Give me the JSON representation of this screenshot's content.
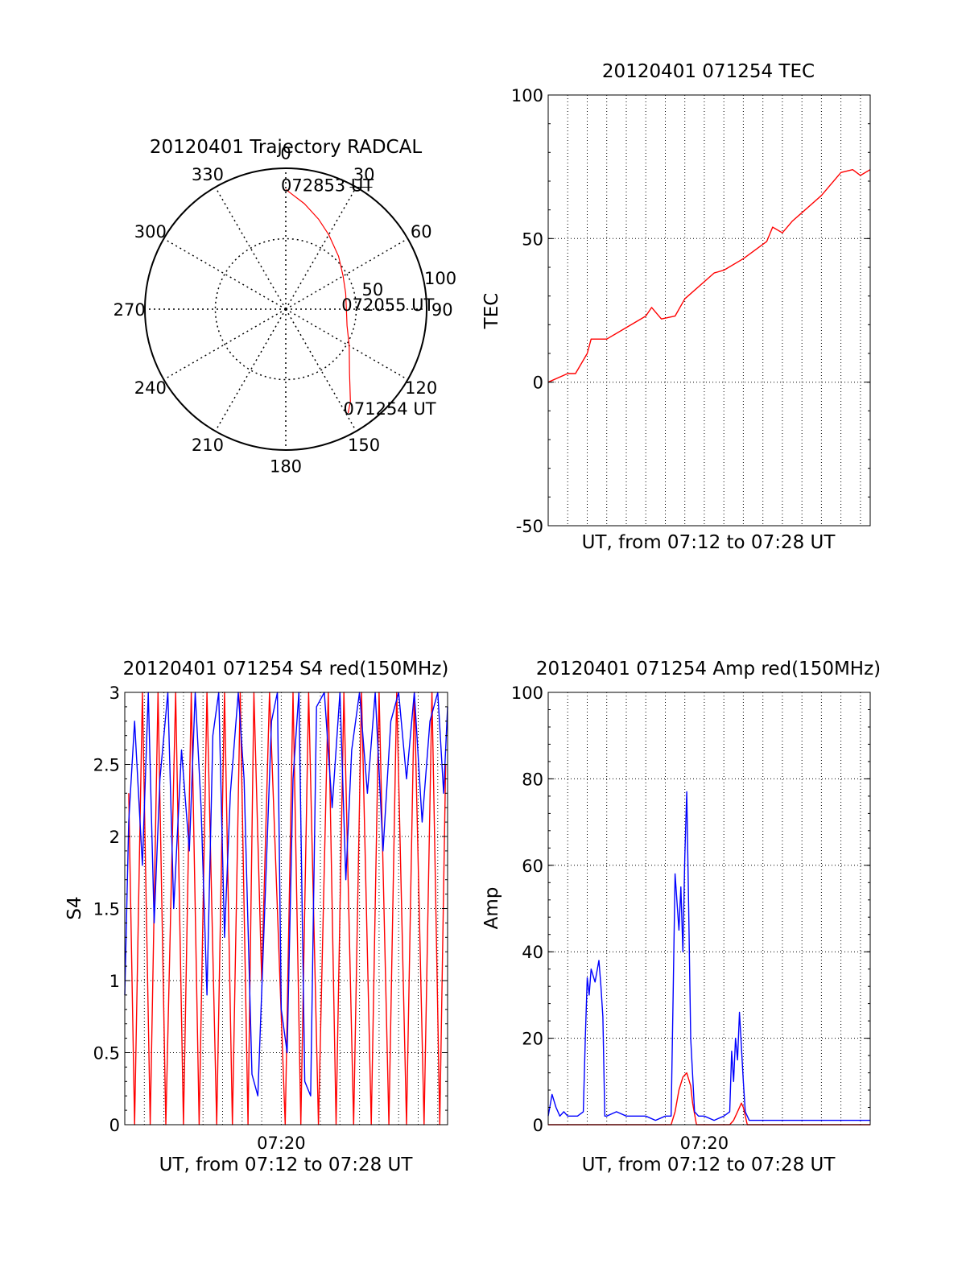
{
  "chart_data": [
    {
      "type": "polar",
      "title": "20120401 Trajectory RADCAL",
      "angle_ticks": [
        "0",
        "30",
        "60",
        "90",
        "120",
        "150",
        "180",
        "210",
        "240",
        "270",
        "300",
        "330"
      ],
      "angle_values": [
        0,
        30,
        60,
        90,
        120,
        150,
        180,
        210,
        240,
        270,
        300,
        330
      ],
      "radius_ticks": [
        "100",
        "50"
      ],
      "radius_values": [
        100,
        50
      ],
      "track_color": "#ff0000",
      "track": [
        {
          "az": 0,
          "r": 85
        },
        {
          "az": 10,
          "r": 76
        },
        {
          "az": 20,
          "r": 68
        },
        {
          "az": 30,
          "r": 61
        },
        {
          "az": 45,
          "r": 53
        },
        {
          "az": 60,
          "r": 47
        },
        {
          "az": 75,
          "r": 44
        },
        {
          "az": 90,
          "r": 43
        },
        {
          "az": 105,
          "r": 45
        },
        {
          "az": 120,
          "r": 52
        },
        {
          "az": 135,
          "r": 64
        },
        {
          "az": 145,
          "r": 80
        },
        {
          "az": 149,
          "r": 86
        }
      ],
      "labels": [
        {
          "text": "072853 UT",
          "az": 0,
          "r": 85
        },
        {
          "text": "072055 UT",
          "az": 90,
          "r": 43
        },
        {
          "text": "071254 UT",
          "az": 149,
          "r": 86
        }
      ]
    },
    {
      "type": "line",
      "title": "20120401 071254 TEC",
      "xlabel": "UT, from 07:12 to 07:28 UT",
      "ylabel": "TEC",
      "xlim": [
        0,
        16.5
      ],
      "ylim": [
        -50,
        100
      ],
      "yticks": [
        "100",
        "50",
        "0",
        "-50"
      ],
      "ytick_values": [
        100,
        50,
        0,
        -50
      ],
      "grid": true,
      "series": [
        {
          "color": "#ff0000",
          "x": [
            0.0,
            1.0,
            1.4,
            2.0,
            2.2,
            3.0,
            4.0,
            5.0,
            5.3,
            5.8,
            6.5,
            7.0,
            8.5,
            9.0,
            10.0,
            11.2,
            11.5,
            12.0,
            12.5,
            13.0,
            14.0,
            15.0,
            15.6,
            16.0,
            16.5
          ],
          "values": [
            0,
            3,
            3,
            10,
            15,
            15,
            19,
            23,
            26,
            22,
            23,
            29,
            38,
            39,
            43,
            49,
            54,
            52,
            56,
            59,
            65,
            73,
            74,
            72,
            74
          ]
        }
      ]
    },
    {
      "type": "line",
      "title": "20120401 071254 S4 red(150MHz)",
      "xlabel": "UT, from 07:12 to 07:28 UT",
      "ylabel": "S4",
      "xticks": [
        "07:20"
      ],
      "xtick_values": [
        8
      ],
      "xlim": [
        0,
        16.5
      ],
      "ylim": [
        0,
        3
      ],
      "yticks": [
        "3",
        "2.5",
        "2",
        "1.5",
        "1",
        "0.5",
        "0"
      ],
      "ytick_values": [
        3,
        2.5,
        2,
        1.5,
        1,
        0.5,
        0
      ],
      "grid": true,
      "series": [
        {
          "color": "#ff0000",
          "x": [
            0.2,
            0.5,
            0.9,
            1.3,
            1.7,
            2.1,
            2.6,
            3.0,
            3.4,
            3.8,
            4.2,
            4.7,
            5.1,
            5.5,
            5.9,
            6.3,
            6.6,
            7.0,
            7.4,
            8.2,
            8.6,
            9.0,
            9.4,
            9.9,
            10.4,
            10.8,
            11.2,
            11.7,
            12.1,
            12.6,
            13.0,
            13.5,
            13.9,
            14.4,
            14.8,
            15.3,
            15.7,
            16.1,
            16.4
          ],
          "values": [
            2.3,
            0,
            3,
            0,
            3,
            0,
            3,
            0,
            3,
            0,
            3,
            0,
            3,
            0,
            3,
            0,
            3,
            1.0,
            3,
            0,
            3,
            0,
            3,
            0,
            3,
            0,
            3,
            0,
            3,
            0,
            3,
            0,
            3,
            0,
            3,
            0,
            3,
            0,
            2.5
          ]
        },
        {
          "color": "#0000ff",
          "x": [
            0.0,
            0.2,
            0.5,
            0.9,
            1.2,
            1.5,
            1.8,
            2.2,
            2.5,
            2.9,
            3.3,
            3.6,
            3.9,
            4.2,
            4.5,
            4.8,
            5.1,
            5.4,
            5.8,
            6.1,
            6.5,
            6.8,
            7.1,
            7.5,
            7.8,
            8.0,
            8.3,
            8.6,
            8.9,
            9.2,
            9.5,
            9.8,
            10.2,
            10.6,
            11.0,
            11.3,
            11.6,
            12.0,
            12.4,
            12.8,
            13.2,
            13.6,
            14.0,
            14.4,
            14.8,
            15.2,
            15.6,
            16.0,
            16.3,
            16.5
          ],
          "values": [
            0.9,
            2.1,
            2.8,
            1.8,
            3,
            1.4,
            2.4,
            3,
            1.5,
            2.6,
            1.9,
            3,
            2.2,
            0.9,
            2.7,
            3,
            1.3,
            2.3,
            3,
            2.4,
            0.35,
            0.2,
            1.3,
            2.8,
            3,
            0.8,
            0.5,
            2.4,
            3,
            0.3,
            0.2,
            2.9,
            3,
            2.2,
            3,
            1.7,
            2.6,
            3,
            2.3,
            3,
            1.9,
            2.8,
            3,
            2.4,
            3,
            2.1,
            2.8,
            3,
            2.3,
            2.9
          ]
        }
      ]
    },
    {
      "type": "line",
      "title": "20120401 071254 Amp red(150MHz)",
      "xlabel": "UT, from 07:12 to 07:28 UT",
      "ylabel": "Amp",
      "xticks": [
        "07:20"
      ],
      "xtick_values": [
        8
      ],
      "xlim": [
        0,
        16.5
      ],
      "ylim": [
        0,
        100
      ],
      "yticks": [
        "100",
        "80",
        "60",
        "40",
        "20",
        "0"
      ],
      "ytick_values": [
        100,
        80,
        60,
        40,
        20,
        0
      ],
      "grid": true,
      "series": [
        {
          "color": "#ff0000",
          "x": [
            0.0,
            2.0,
            2.1,
            6.3,
            6.5,
            6.7,
            6.9,
            7.1,
            7.3,
            7.4,
            7.6,
            9.3,
            9.5,
            9.7,
            9.9,
            10.0,
            10.2,
            16.5
          ],
          "values": [
            0,
            0,
            0,
            0,
            3,
            8,
            11,
            12,
            9,
            5,
            0,
            0,
            1,
            3,
            5,
            4,
            0,
            0
          ]
        },
        {
          "color": "#0000ff",
          "x": [
            0.0,
            0.2,
            0.4,
            0.6,
            0.8,
            1.0,
            1.5,
            1.8,
            1.9,
            2.0,
            2.1,
            2.2,
            2.4,
            2.6,
            2.7,
            2.8,
            2.9,
            3.0,
            3.5,
            4.0,
            4.5,
            5.0,
            5.5,
            6.0,
            6.3,
            6.4,
            6.5,
            6.7,
            6.8,
            6.9,
            7.0,
            7.1,
            7.2,
            7.3,
            7.5,
            7.7,
            8.0,
            8.5,
            9.0,
            9.3,
            9.4,
            9.5,
            9.6,
            9.7,
            9.8,
            9.9,
            10.0,
            10.1,
            10.3,
            11.0,
            12.0,
            13.0,
            14.0,
            15.0,
            16.0,
            16.5
          ],
          "values": [
            2,
            7,
            4,
            2,
            3,
            2,
            2,
            3,
            20,
            34,
            30,
            36,
            33,
            38,
            32,
            25,
            2,
            2,
            3,
            2,
            2,
            2,
            1,
            2,
            2,
            30,
            58,
            45,
            55,
            40,
            62,
            77,
            50,
            20,
            3,
            2,
            2,
            1,
            2,
            3,
            17,
            10,
            20,
            15,
            26,
            18,
            10,
            3,
            1,
            1,
            1,
            1,
            1,
            1,
            1,
            1
          ]
        }
      ]
    }
  ]
}
